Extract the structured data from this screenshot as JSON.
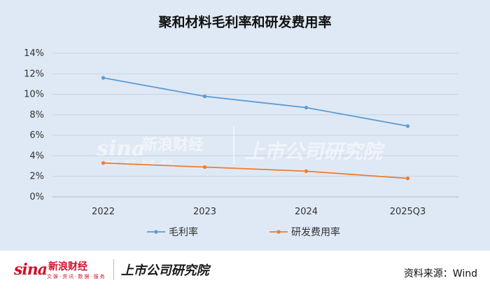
{
  "chart_data": {
    "type": "line",
    "title": "聚和材料毛利率和研发费用率",
    "categories": [
      "2022",
      "2023",
      "2024",
      "2025Q3"
    ],
    "y_ticks": [
      "0%",
      "2%",
      "4%",
      "6%",
      "8%",
      "10%",
      "12%",
      "14%"
    ],
    "ylim": [
      0,
      14
    ],
    "grid": true,
    "legend_position": "bottom",
    "series": [
      {
        "name": "毛利率",
        "color": "#5b9bd5",
        "values": [
          11.6,
          9.8,
          8.7,
          6.9
        ]
      },
      {
        "name": "研发费用率",
        "color": "#ed7d31",
        "values": [
          3.3,
          2.9,
          2.5,
          1.8
        ]
      }
    ]
  },
  "watermark": {
    "brand_mark": "sina",
    "brand_name": "新浪财经",
    "brand_sub": "文娱 · 资讯 · 数据 · 服务",
    "research_name": "上市公司研究院"
  },
  "footer": {
    "brand_mark": "sina",
    "brand_name": "新浪财经",
    "brand_sub": "文娱·资讯·数据·服务",
    "research_name": "上市公司研究院",
    "source": "资料来源：Wind"
  }
}
